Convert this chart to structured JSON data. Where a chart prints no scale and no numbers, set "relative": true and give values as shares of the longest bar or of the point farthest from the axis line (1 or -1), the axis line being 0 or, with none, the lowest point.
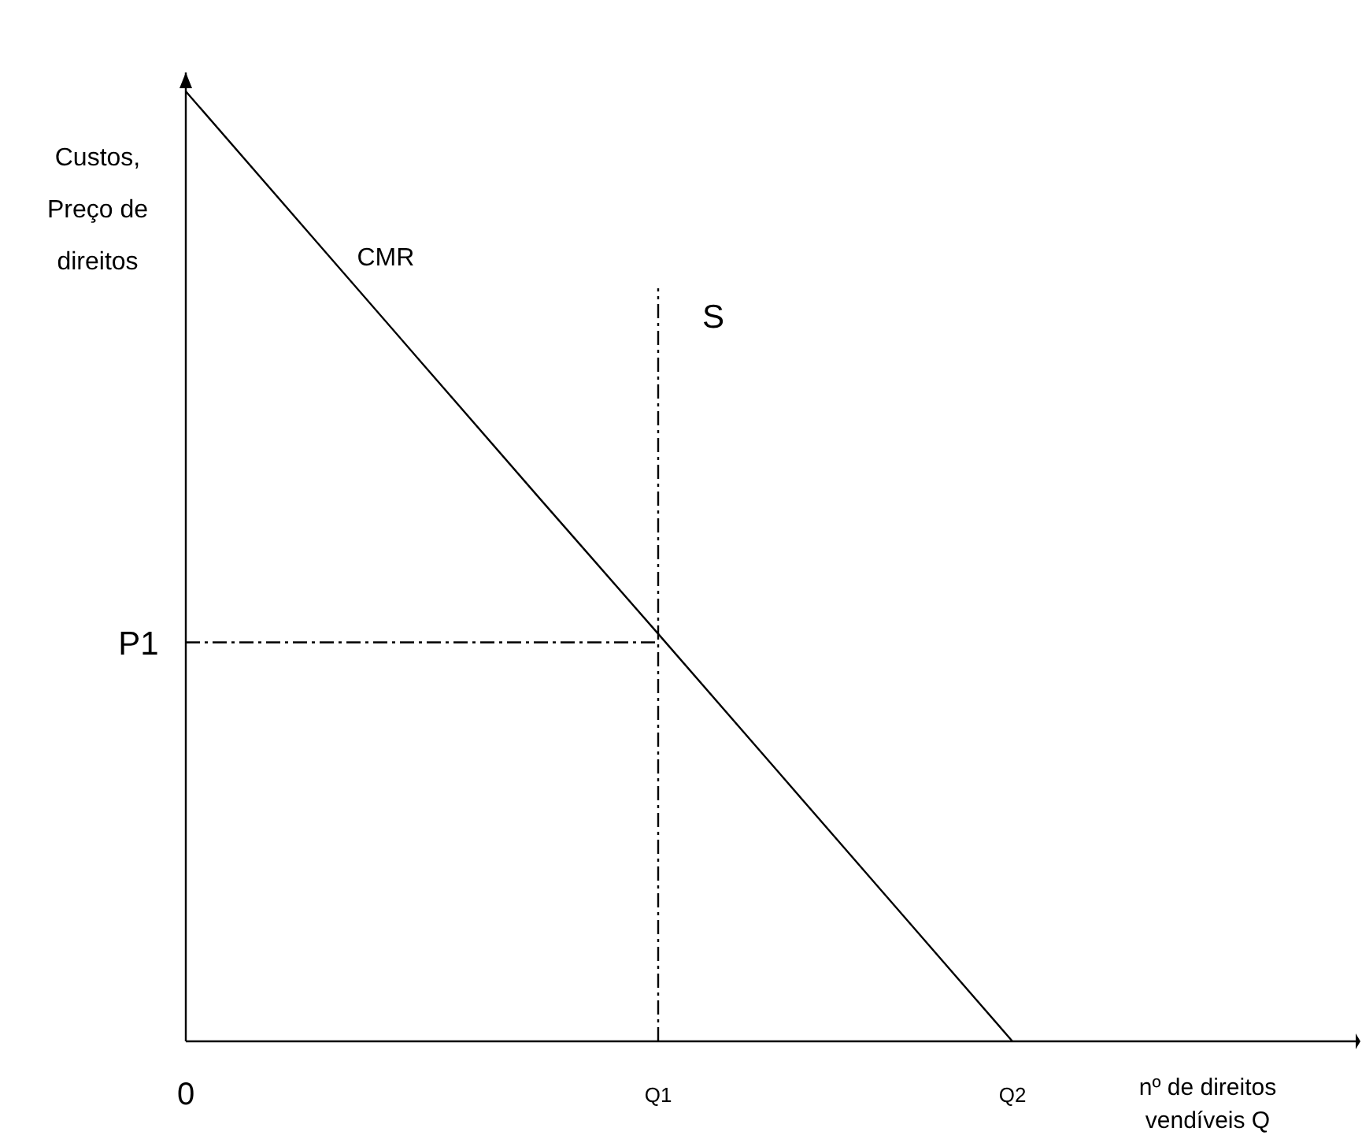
{
  "chart_data": {
    "type": "line",
    "relative": true,
    "xlabel": "nº de direitos vendíveis Q",
    "ylabel": "Custos, Preço de direitos",
    "categories": [
      "0",
      null,
      null,
      null,
      "Q1",
      null,
      null,
      "Q2",
      null,
      null
    ],
    "series": [
      {
        "name": "CMR",
        "color": "#000000",
        "values": [
          1,
          0.857,
          0.714,
          0.571,
          0.429,
          0.286,
          0.143,
          0,
          null,
          null
        ]
      }
    ],
    "ref_lines": [
      {
        "axis": "x",
        "value": "Q1",
        "label": "S",
        "line_style": "dashed",
        "color": "#000000"
      },
      {
        "axis": "y",
        "value": 0.42,
        "label": "P1",
        "line_style": "dashed",
        "color": "#000000"
      }
    ],
    "marker": "none",
    "line_style": "solid",
    "legend": false
  }
}
